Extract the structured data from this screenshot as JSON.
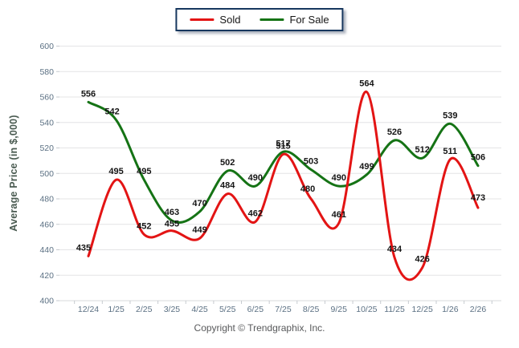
{
  "legend": {
    "items": [
      {
        "id": "sold",
        "label": "Sold",
        "color": "#e31414"
      },
      {
        "id": "for-sale",
        "label": "For Sale",
        "color": "#157315"
      }
    ]
  },
  "footer": {
    "copyright": "Copyright © Trendgraphix, Inc."
  },
  "chart_data": {
    "type": "line",
    "title": "",
    "xlabel": "",
    "ylabel": "Average Price (in $,000)",
    "ylim": [
      400,
      600
    ],
    "ytick_step": 20,
    "grid": "horizontal",
    "legend_position": "top-center",
    "line_style": "smooth-spline",
    "categories": [
      "12/24",
      "1/25",
      "2/25",
      "3/25",
      "4/25",
      "5/25",
      "6/25",
      "7/25",
      "8/25",
      "9/25",
      "10/25",
      "11/25",
      "12/25",
      "1/26",
      "2/26"
    ],
    "series": [
      {
        "name": "For Sale",
        "color": "#157315",
        "values": [
          556,
          542,
          495,
          463,
          470,
          502,
          490,
          517,
          503,
          490,
          499,
          526,
          512,
          539,
          506
        ],
        "label_offsets": {
          "1": [
            -5,
            0
          ]
        }
      },
      {
        "name": "Sold",
        "color": "#e31414",
        "values": [
          435,
          495,
          452,
          455,
          449,
          484,
          462,
          515,
          480,
          461,
          564,
          434,
          426,
          511,
          473
        ],
        "label_offsets": {
          "0": [
            -6,
            0
          ],
          "3": [
            0,
            2
          ],
          "8": [
            -4,
            -2
          ],
          "14": [
            0,
            -2
          ]
        }
      }
    ],
    "style_hints": {
      "grid_color": "#e4e4e6",
      "axis_line_color": "#d7d9db",
      "tick_mark_color": "#c6cacf",
      "tick_label_color": "#5b7083",
      "data_label_color": "#151515"
    }
  }
}
